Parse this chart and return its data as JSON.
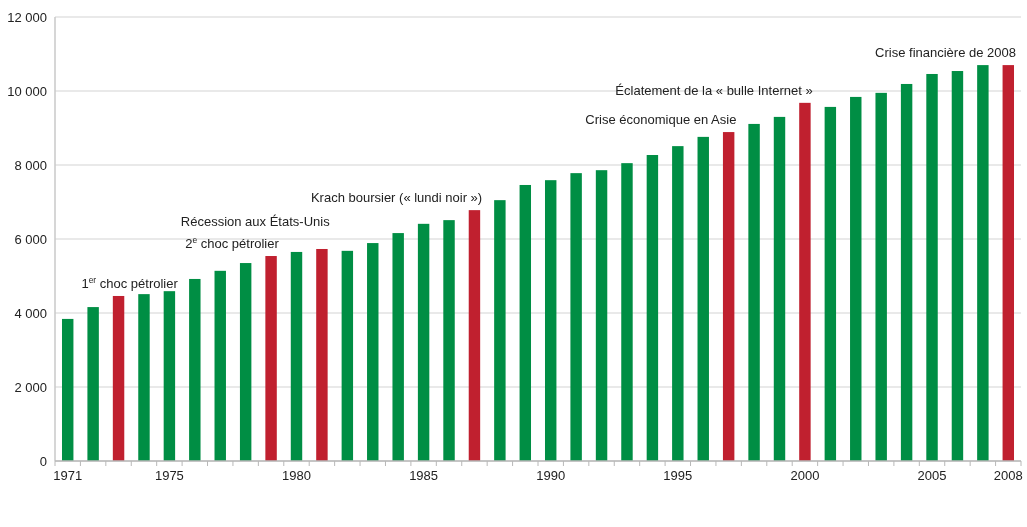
{
  "chart_data": {
    "type": "bar",
    "x": [
      1971,
      1972,
      1973,
      1974,
      1975,
      1976,
      1977,
      1978,
      1979,
      1980,
      1981,
      1982,
      1983,
      1984,
      1985,
      1986,
      1987,
      1988,
      1989,
      1990,
      1991,
      1992,
      1993,
      1994,
      1995,
      1996,
      1997,
      1998,
      1999,
      2000,
      2001,
      2002,
      2003,
      2004,
      2005,
      2006,
      2007,
      2008
    ],
    "values": [
      3840,
      4160,
      4460,
      4510,
      4590,
      4920,
      5140,
      5350,
      5540,
      5650,
      5730,
      5680,
      5890,
      6160,
      6410,
      6510,
      6780,
      7050,
      7460,
      7590,
      7780,
      7860,
      8050,
      8270,
      8510,
      8760,
      8890,
      9110,
      9300,
      9680,
      9570,
      9840,
      9950,
      10190,
      10460,
      10540,
      10700,
      10700
    ],
    "colors": [
      "#008e44",
      "#008e44",
      "#c0202f",
      "#008e44",
      "#008e44",
      "#008e44",
      "#008e44",
      "#008e44",
      "#c0202f",
      "#008e44",
      "#c0202f",
      "#008e44",
      "#008e44",
      "#008e44",
      "#008e44",
      "#008e44",
      "#c0202f",
      "#008e44",
      "#008e44",
      "#008e44",
      "#008e44",
      "#008e44",
      "#008e44",
      "#008e44",
      "#008e44",
      "#008e44",
      "#c0202f",
      "#008e44",
      "#008e44",
      "#c0202f",
      "#008e44",
      "#008e44",
      "#008e44",
      "#008e44",
      "#008e44",
      "#008e44",
      "#008e44",
      "#c0202f"
    ],
    "xlim": [
      1970.5,
      2008.5
    ],
    "xticks": [
      1971,
      1975,
      1980,
      1985,
      1990,
      1995,
      2000,
      2005,
      2008
    ],
    "ylim": [
      0,
      12000
    ],
    "yticks": [
      {
        "value": 0,
        "label": "0"
      },
      {
        "value": 2000,
        "label": "2 000"
      },
      {
        "value": 4000,
        "label": "4 000"
      },
      {
        "value": 6000,
        "label": "6 000"
      },
      {
        "value": 8000,
        "label": "8 000"
      },
      {
        "value": 10000,
        "label": "10 000"
      },
      {
        "value": 12000,
        "label": "12 000"
      }
    ],
    "grid": "y",
    "annotations": [
      {
        "text": "1$^{er}$ choc pétrolier",
        "x": 1973,
        "y": 4460
      },
      {
        "text": "2$^{e}$ choc pétrolier",
        "x": 1979,
        "y": 5540
      },
      {
        "text": "Récession aux États-Unis",
        "x": 1981,
        "y": 5730
      },
      {
        "text": "Krach boursier (« lundi noir »)",
        "x": 1987,
        "y": 6780
      },
      {
        "text": "Crise économique en Asie",
        "x": 1997,
        "y": 8890
      },
      {
        "text": "Éclatement de la « bulle Internet »",
        "x": 2000,
        "y": 9680
      },
      {
        "text": "Crise financière de 2008",
        "x": 2008,
        "y": 10700
      }
    ]
  }
}
